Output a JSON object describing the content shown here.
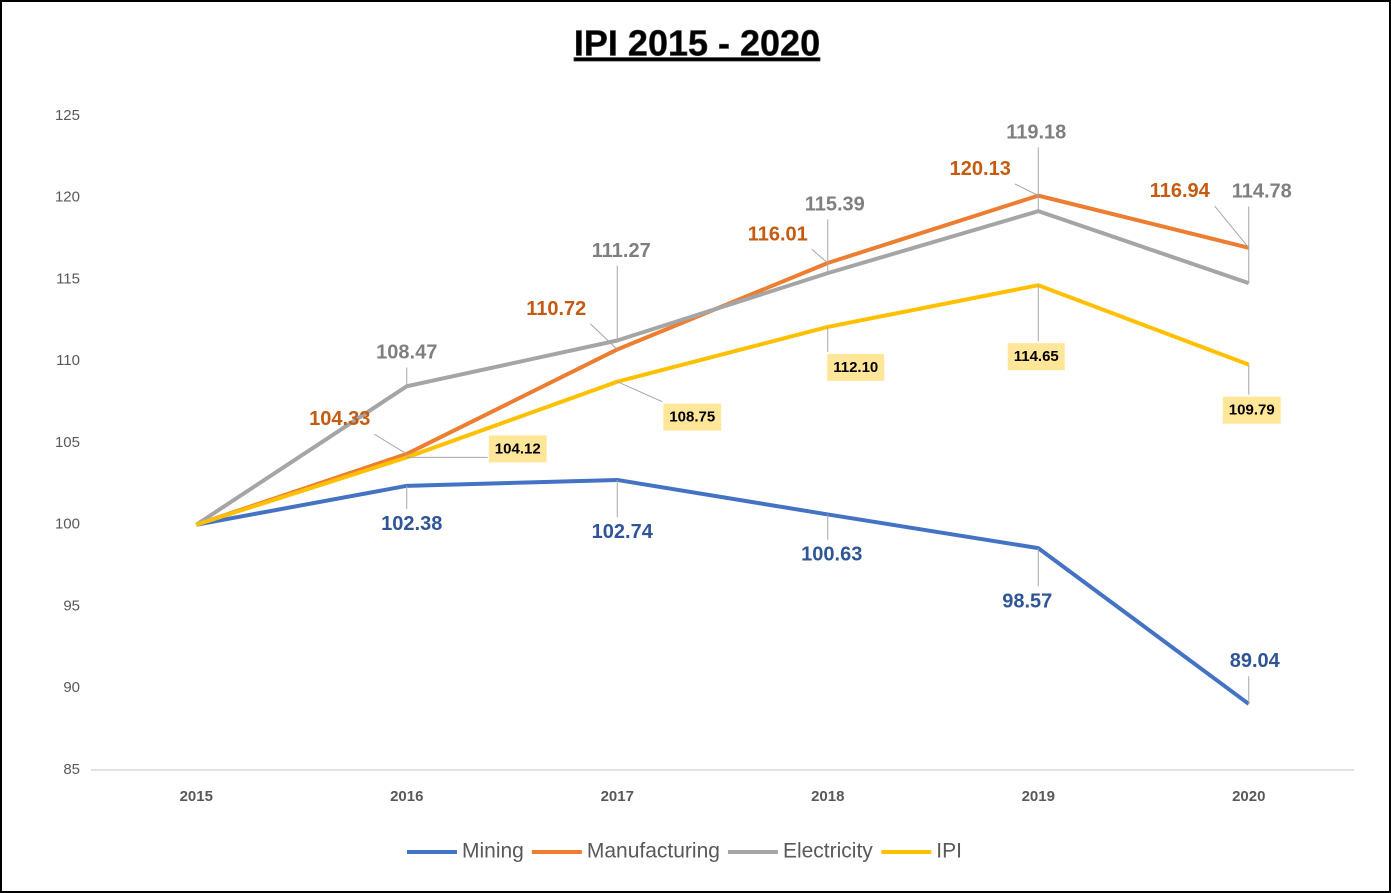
{
  "chart_data": {
    "type": "line",
    "title": "IPI 2015 - 2020",
    "categories": [
      "2015",
      "2016",
      "2017",
      "2018",
      "2019",
      "2020"
    ],
    "series": [
      {
        "name": "Mining",
        "color": "#4472c4",
        "label_color": "#2f5597",
        "values": [
          100,
          102.38,
          102.74,
          100.63,
          98.57,
          89.04
        ],
        "value_labels": [
          null,
          "102.38",
          "102.74",
          "100.63",
          "98.57",
          "89.04"
        ]
      },
      {
        "name": "Manufacturing",
        "color": "#ed7d31",
        "label_color": "#c55a11",
        "values": [
          100,
          104.33,
          110.72,
          116.01,
          120.13,
          116.94
        ],
        "value_labels": [
          null,
          "104.33",
          "110.72",
          "116.01",
          "120.13",
          "116.94"
        ]
      },
      {
        "name": "Electricity",
        "color": "#a5a5a5",
        "label_color": "#7f7f7f",
        "values": [
          100,
          108.47,
          111.27,
          115.39,
          119.18,
          114.78
        ],
        "value_labels": [
          null,
          "108.47",
          "111.27",
          "115.39",
          "119.18",
          "114.78"
        ]
      },
      {
        "name": "IPI",
        "color": "#ffc000",
        "label_color": "#000000",
        "label_box": "#ffe699",
        "values": [
          100,
          104.12,
          108.75,
          112.1,
          114.65,
          109.79
        ],
        "value_labels": [
          null,
          "104.12",
          "108.75",
          "112.10",
          "114.65",
          "109.79"
        ]
      }
    ],
    "ylim": [
      85,
      125
    ],
    "yticks": [
      85,
      90,
      95,
      100,
      105,
      110,
      115,
      120,
      125
    ],
    "grid": false,
    "legend": "bottom"
  }
}
